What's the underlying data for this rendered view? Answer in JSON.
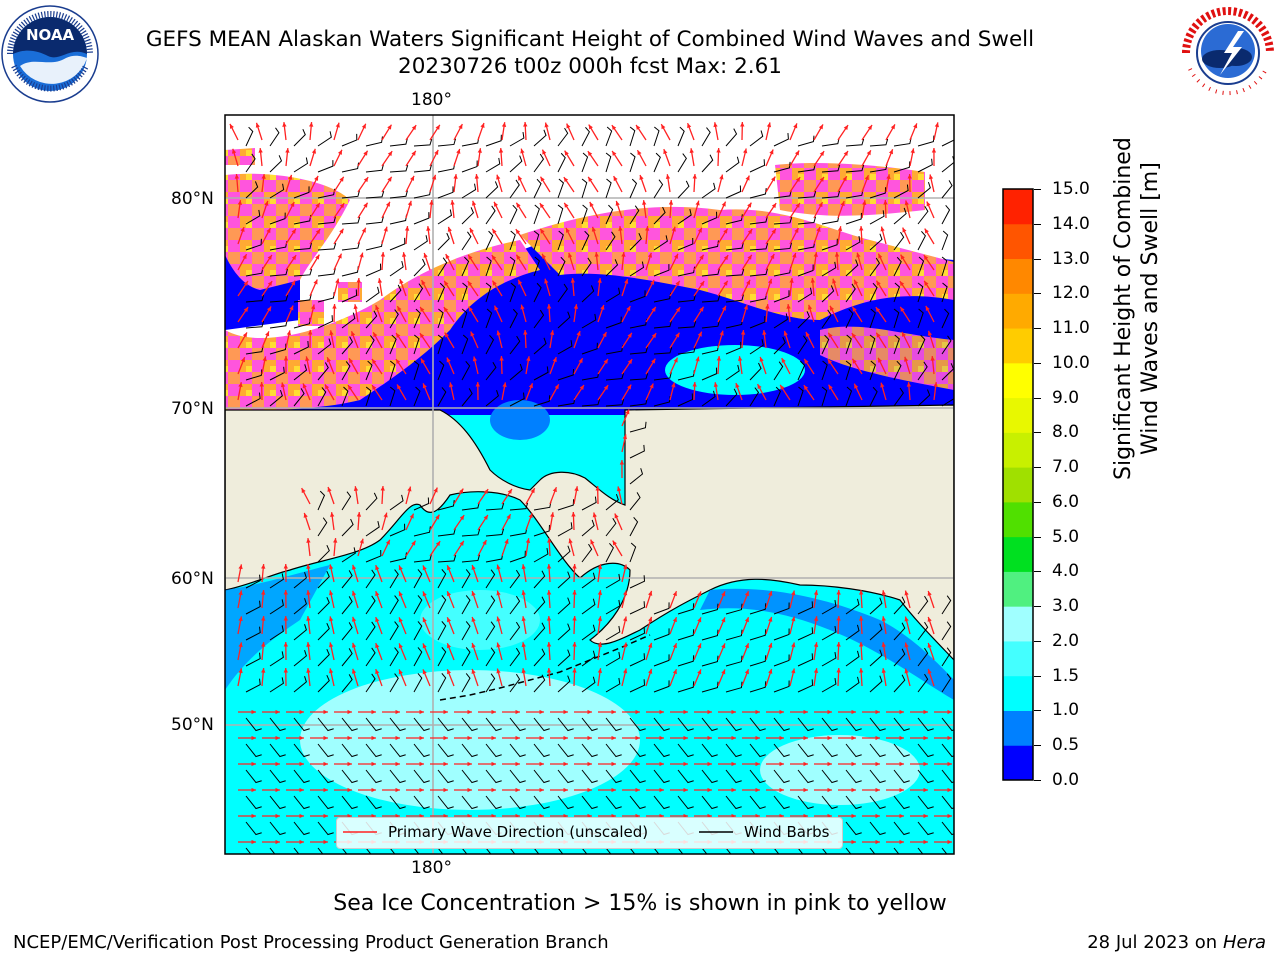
{
  "header": {
    "title_line1": "GEFS MEAN Alaskan Waters Significant Height of Combined Wind Waves and Swell",
    "title_line2": "20230726 t00z 000h fcst   Max: 2.61"
  },
  "logos": {
    "left": {
      "text": "NOAA",
      "ring_text": "NATIONAL OCEANIC AND ATMOSPHERIC ADMINISTRATION · U.S. DEPARTMENT OF COMMERCE",
      "icon": "noaa-logo"
    },
    "right": {
      "ring_text": "NATIONAL WEATHER SERVICE",
      "icon": "nws-logo"
    }
  },
  "map": {
    "longitude_labels": [
      "180°",
      "180°"
    ],
    "latitude_labels": [
      "80°N",
      "70°N",
      "60°N",
      "50°N"
    ],
    "colors": {
      "land": "#efeddc",
      "open_water_low": "#0000ff",
      "swell_1_1_5": "#00ffff",
      "swell_1_5_2": "#44ffff",
      "swell_2_3": "#a0ffff",
      "ice_pink": "#ff55dd",
      "ice_orange": "#ffaa33",
      "ice_yellow": "#ffdd33",
      "wave_arrow": "#ff2222",
      "wind_barb": "#000000",
      "grid": "#b0b0b0"
    }
  },
  "legend": {
    "wave_direction_label": "Primary Wave Direction (unscaled)",
    "wind_barbs_label": "Wind Barbs"
  },
  "colorbar": {
    "title_line1": "Significant Height of Combined",
    "title_line2": "Wind Waves and Swell [m]",
    "ticks": [
      "0.0",
      "0.5",
      "1.0",
      "1.5",
      "2.0",
      "3.0",
      "4.0",
      "5.0",
      "6.0",
      "7.0",
      "8.0",
      "9.0",
      "10.0",
      "11.0",
      "12.0",
      "13.0",
      "14.0",
      "15.0"
    ],
    "colors": [
      "#0000ff",
      "#0080ff",
      "#00ffff",
      "#44ffff",
      "#a0ffff",
      "#50f080",
      "#00e020",
      "#50e000",
      "#a0e000",
      "#c8f000",
      "#e8f800",
      "#ffff00",
      "#ffcc00",
      "#ffaa00",
      "#ff8800",
      "#ff5500",
      "#ff2200"
    ]
  },
  "caption": "Sea Ice Concentration > 15% is shown in pink to yellow",
  "footer": {
    "left": "NCEP/EMC/Verification Post Processing Product Generation Branch",
    "right_prefix": "28 Jul 2023 on ",
    "right_machine": "Hera"
  }
}
